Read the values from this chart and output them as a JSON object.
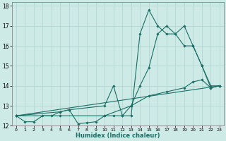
{
  "xlabel": "Humidex (Indice chaleur)",
  "background_color": "#ceeae7",
  "grid_color": "#aed4d0",
  "line_color": "#1a6e64",
  "xlim": [
    -0.5,
    23.5
  ],
  "ylim": [
    12,
    18.2
  ],
  "yticks": [
    12,
    13,
    14,
    15,
    16,
    17,
    18
  ],
  "xticks": [
    0,
    1,
    2,
    3,
    4,
    5,
    6,
    7,
    8,
    9,
    10,
    11,
    12,
    13,
    14,
    15,
    16,
    17,
    18,
    19,
    20,
    21,
    22,
    23
  ],
  "lines": [
    {
      "x": [
        0,
        1,
        2,
        3,
        4,
        5,
        6,
        7,
        8,
        9,
        10,
        11,
        12,
        13,
        14,
        15,
        16,
        17,
        18,
        19,
        20,
        21,
        22,
        23
      ],
      "y": [
        12.5,
        12.2,
        12.2,
        12.5,
        12.5,
        12.7,
        12.8,
        12.1,
        12.15,
        12.2,
        12.5,
        12.5,
        12.5,
        13.0,
        14.0,
        14.9,
        16.6,
        17.0,
        16.6,
        16.0,
        16.0,
        15.0,
        14.0,
        14.0
      ]
    },
    {
      "x": [
        0,
        5,
        6,
        10,
        11,
        12,
        13,
        14,
        15,
        16,
        17,
        18,
        19,
        20,
        21,
        22,
        23
      ],
      "y": [
        12.5,
        12.7,
        12.8,
        13.0,
        14.0,
        12.5,
        12.5,
        16.6,
        17.8,
        17.0,
        16.6,
        16.6,
        17.0,
        16.0,
        15.0,
        13.9,
        14.0
      ]
    },
    {
      "x": [
        0,
        23
      ],
      "y": [
        12.5,
        14.0
      ]
    },
    {
      "x": [
        0,
        5,
        10,
        13,
        15,
        17,
        19,
        20,
        21,
        22,
        23
      ],
      "y": [
        12.5,
        12.5,
        12.5,
        13.0,
        13.5,
        13.7,
        13.9,
        14.2,
        14.3,
        13.9,
        14.0
      ]
    }
  ]
}
